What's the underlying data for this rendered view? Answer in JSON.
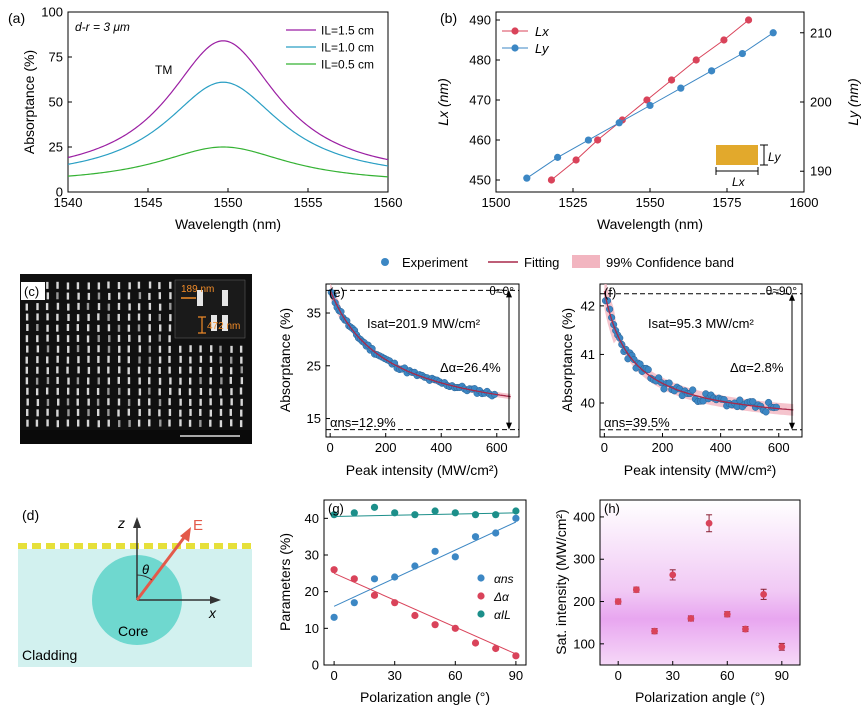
{
  "legend_top": {
    "experiment": "Experiment",
    "fitting": "Fitting",
    "band": "99% Confidence band"
  },
  "panel_labels": {
    "a": "(a)",
    "b": "(b)",
    "c": "(c)",
    "d": "(d)",
    "e": "(e)",
    "f": "(f)",
    "g": "(g)",
    "h": "(h)"
  },
  "colors": {
    "purple": "#9b1fa3",
    "cyan": "#2a9fc4",
    "green": "#34b233",
    "red": "#d9435a",
    "blue": "#3c87c4",
    "teal": "#1c8f8a",
    "gold": "#e2a92c",
    "band": "#f2b5c0",
    "cladding": "#d2f1ef",
    "core": "#6fd8cf"
  },
  "panel_c": {
    "dim_width": "189 nm",
    "dim_length": "472 nm"
  },
  "panel_d": {
    "z_axis": "z",
    "x_axis": "x",
    "theta": "θ",
    "field": "E",
    "core": "Core",
    "cladding": "Cladding"
  },
  "chart_data": [
    {
      "id": "a",
      "type": "line",
      "note_top": "d-r = 3 μm",
      "note_mode": "TM",
      "xlabel": "Wavelength (nm)",
      "ylabel": "Absorptance (%)",
      "xlim": [
        1540,
        1560
      ],
      "ylim": [
        0,
        100
      ],
      "xticks": [
        1540,
        1545,
        1550,
        1555,
        1560
      ],
      "yticks": [
        0,
        25,
        50,
        75,
        100
      ],
      "series": [
        {
          "name": "IL=1.5 cm",
          "peak_x": 1549.7,
          "peak_y": 84,
          "base_y": 7,
          "width": 4.2
        },
        {
          "name": "IL=1.0 cm",
          "peak_x": 1549.7,
          "peak_y": 61,
          "base_y": 6,
          "width": 4.4
        },
        {
          "name": "IL=0.5 cm",
          "peak_x": 1549.7,
          "peak_y": 25,
          "base_y": 4.5,
          "width": 5.0
        }
      ]
    },
    {
      "id": "b",
      "type": "line",
      "xlabel": "Wavelength (nm)",
      "ylabel_left": "Lx (nm)",
      "ylabel_right": "Ly (nm)",
      "xlim": [
        1500,
        1600
      ],
      "ylim_left": [
        447,
        492
      ],
      "ylim_right": [
        187,
        213
      ],
      "xticks": [
        1500,
        1525,
        1550,
        1575,
        1600
      ],
      "yticks_left": [
        450,
        460,
        470,
        480,
        490
      ],
      "yticks_right": [
        190,
        200,
        210
      ],
      "legend": [
        "Lx",
        "Ly"
      ],
      "inset": {
        "lx": "Lx",
        "ly": "Ly"
      },
      "series": [
        {
          "name": "Lx",
          "axis": "left",
          "x": [
            1518,
            1526,
            1533,
            1541,
            1549,
            1557,
            1565,
            1574,
            1582
          ],
          "y": [
            450,
            455,
            460,
            465,
            470,
            475,
            480,
            485,
            490
          ]
        },
        {
          "name": "Ly",
          "axis": "right",
          "x": [
            1510,
            1520,
            1530,
            1540,
            1550,
            1560,
            1570,
            1580,
            1590
          ],
          "y": [
            189,
            192,
            194.5,
            197,
            199.5,
            202,
            204.5,
            207,
            210
          ]
        }
      ]
    },
    {
      "id": "e",
      "type": "scatter",
      "angle": "θ≈0°",
      "isat_text": "Isat=201.9 MW/cm²",
      "delta_text": "Δα=26.4%",
      "ans_text": "αns=12.9%",
      "xlabel": "Peak intensity (MW/cm²)",
      "ylabel": "Absorptance (%)",
      "xlim": [
        -15,
        680
      ],
      "ylim": [
        11.5,
        40.5
      ],
      "xticks": [
        0,
        200,
        400,
        600
      ],
      "yticks": [
        15,
        25,
        35
      ],
      "ans": 12.9,
      "top": 39.3,
      "fit": {
        "ans": 12.9,
        "delta": 26.4,
        "isat": 201.9
      }
    },
    {
      "id": "f",
      "type": "scatter",
      "angle": "θ≈90°",
      "isat_text": "Isat=95.3 MW/cm²",
      "delta_text": "Δα=2.8%",
      "ans_text": "αns=39.5%",
      "xlabel": "Peak intensity (MW/cm²)",
      "ylabel": "Absorptance (%)",
      "xlim": [
        -15,
        680
      ],
      "ylim": [
        39.3,
        42.45
      ],
      "xticks": [
        0,
        200,
        400,
        600
      ],
      "yticks": [
        40,
        41,
        42
      ],
      "ans": 39.45,
      "top": 42.25,
      "fit": {
        "ans": 39.5,
        "delta": 2.8,
        "isat": 95.3
      }
    },
    {
      "id": "g",
      "type": "scatter",
      "xlabel": "Polarization angle (°)",
      "ylabel": "Parameters (%)",
      "xlim": [
        -5,
        95
      ],
      "ylim": [
        0,
        45
      ],
      "xticks": [
        0,
        30,
        60,
        90
      ],
      "yticks": [
        0,
        10,
        20,
        30,
        40
      ],
      "legend": [
        "αns",
        "Δα",
        "αIL"
      ],
      "x": [
        0,
        10,
        20,
        30,
        40,
        50,
        60,
        70,
        80,
        90
      ],
      "series": [
        {
          "name": "αns",
          "values": [
            13,
            17,
            23.5,
            24,
            27,
            31,
            29.5,
            35,
            36,
            40
          ]
        },
        {
          "name": "Δα",
          "values": [
            26,
            23.5,
            19,
            17,
            13.5,
            11,
            10,
            6,
            4.5,
            2.5
          ]
        },
        {
          "name": "αIL",
          "values": [
            41,
            41.5,
            43,
            41.5,
            41,
            42,
            41.5,
            41,
            41,
            42
          ]
        }
      ],
      "fits": [
        {
          "name": "αns",
          "x": [
            0,
            90
          ],
          "y": [
            16,
            39
          ]
        },
        {
          "name": "Δα",
          "x": [
            0,
            90
          ],
          "y": [
            25,
            3
          ]
        },
        {
          "name": "αIL",
          "x": [
            0,
            90
          ],
          "y": [
            40.5,
            41.5
          ]
        }
      ]
    },
    {
      "id": "h",
      "type": "scatter",
      "xlabel": "Polarization angle (°)",
      "ylabel": "Sat. intensity (MW/cm²)",
      "xlim": [
        -10,
        100
      ],
      "ylim": [
        50,
        440
      ],
      "xticks": [
        0,
        30,
        60,
        90
      ],
      "yticks": [
        100,
        200,
        300,
        400
      ],
      "band_center": 180,
      "x": [
        0,
        10,
        20,
        30,
        40,
        50,
        60,
        70,
        80,
        90
      ],
      "values": [
        200,
        228,
        130,
        263,
        160,
        385,
        170,
        135,
        217,
        93
      ],
      "errors": [
        6,
        6,
        6,
        12,
        6,
        20,
        6,
        6,
        12,
        8
      ]
    }
  ]
}
